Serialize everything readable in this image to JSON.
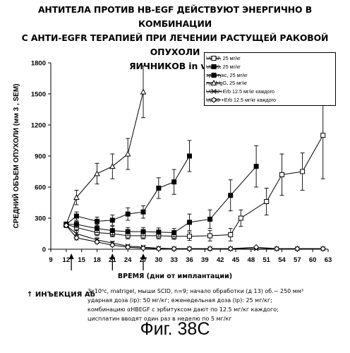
{
  "title_lines": [
    "АНТИТЕЛА ПРОТИВ HB-EGF ДЕЙСТВУЮТ ЭНЕРГИЧНО В КОМБИНАЦИИ",
    "С АНТИ-EGFR ТЕРАПИЕЙ ПРИ ЛЕЧЕНИИ РАСТУЩЕЙ РАКОВОЙ ОПУХОЛИ",
    "ЯИЧНИКОВ in vivo"
  ],
  "injection_note": "↑ ИНЪЕКЦИЯ Ab",
  "notes": [
    "3x10⁶c, matrigel, мыши SCID, n=9; начало обработки (д 13) об.~ 250  мм³",
    "ударная доза (ip): 50 мг/кг;    еженедельная доза (ip): 25 мг/кг;",
    "комбинацию     αHBEGF    с эрбитуксом дают по    12.5 мг/кг каждого;",
    "цисплатин вводят один раз в неделю по 5 мг/кг"
  ],
  "figure_label": "Фиг. 38C",
  "chart_data": {
    "type": "line",
    "title": "АНТИТЕЛА ПРОТИВ HB-EGF ДЕЙСТВУЮТ ЭНЕРГИЧНО В КОМБИНАЦИИ С АНТИ-EGFR ТЕРАПИЕЙ ПРИ ЛЕЧЕНИИ РАСТУЩЕЙ РАКОВОЙ ОПУХОЛИ ЯИЧНИКОВ in vivo",
    "xlabel": "ВРЕМЯ (дни от имплантации)",
    "ylabel": "СРЕДНИЙ ОБЪЕМ ОПУХОЛИ (мм 3 , SEM)",
    "xlim": [
      9,
      63
    ],
    "ylim": [
      0,
      1800
    ],
    "xticks": [
      9,
      12,
      15,
      18,
      21,
      24,
      27,
      30,
      33,
      36,
      39,
      42,
      45,
      48,
      51,
      54,
      57,
      60,
      63
    ],
    "xtick_labels": [
      "9",
      "12",
      "15",
      "18",
      "21",
      "24",
      "27",
      "30",
      "33",
      "36",
      "39",
      "42",
      "45",
      "48",
      "51",
      "54",
      "57",
      "60",
      "63"
    ],
    "yticks": [
      0,
      300,
      600,
      900,
      1200,
      1500,
      1800
    ],
    "ytick_labels": [
      "0",
      "300",
      "600",
      "900",
      "1200",
      "1500",
      "1800"
    ],
    "injection_days": [
      13,
      21,
      27
    ],
    "legend_position": "top-right",
    "series": [
      {
        "name": "U2-42, 25 мг/кг",
        "marker": "square-open",
        "x": [
          12,
          14,
          18,
          21,
          24,
          27,
          30,
          33,
          36,
          40,
          44,
          46,
          51,
          54,
          58,
          62
        ],
        "y": [
          240,
          210,
          160,
          150,
          130,
          130,
          130,
          125,
          125,
          130,
          140,
          300,
          460,
          720,
          750,
          1100
        ],
        "err": [
          20,
          30,
          30,
          30,
          30,
          30,
          30,
          30,
          40,
          50,
          60,
          80,
          130,
          200,
          180,
          420
        ]
      },
      {
        "name": "U2-39, 25 мг/кг",
        "marker": "square-filled",
        "x": [
          12,
          14,
          18,
          21,
          24,
          27,
          30,
          33,
          36,
          40,
          44,
          49
        ],
        "y": [
          240,
          240,
          200,
          180,
          170,
          170,
          165,
          160,
          260,
          290,
          520,
          800
        ],
        "err": [
          20,
          30,
          40,
          40,
          40,
          40,
          40,
          40,
          80,
          90,
          150,
          200
        ]
      },
      {
        "name": "эрбитукс, 25 мг/кг",
        "marker": "square-filled",
        "x": [
          12,
          14,
          18,
          21,
          24,
          27,
          30,
          33,
          36
        ],
        "y": [
          240,
          320,
          270,
          280,
          340,
          360,
          590,
          650,
          900
        ],
        "err": [
          20,
          40,
          40,
          50,
          60,
          60,
          100,
          120,
          150
        ]
      },
      {
        "name": "пул hIgG, 25 мг/кг",
        "marker": "triangle-open",
        "x": [
          12,
          14,
          18,
          21,
          24,
          27
        ],
        "y": [
          240,
          500,
          730,
          800,
          920,
          1520
        ],
        "err": [
          20,
          70,
          100,
          120,
          150,
          250
        ]
      },
      {
        "name": "U2-42+Erb 12.5 мг/кг каждого",
        "marker": "x",
        "x": [
          12,
          14,
          18,
          21,
          24,
          27,
          30,
          33,
          36,
          40,
          44,
          49,
          53,
          57,
          62
        ],
        "y": [
          230,
          150,
          90,
          60,
          30,
          20,
          10,
          5,
          5,
          5,
          5,
          5,
          5,
          5,
          5
        ],
        "err": [
          20,
          30,
          20,
          15,
          10,
          10,
          5,
          5,
          5,
          5,
          5,
          5,
          5,
          5,
          5
        ]
      },
      {
        "name": "U2-39 +Erb 12.5 мг/кг каждого",
        "marker": "diamond",
        "x": [
          12,
          14,
          18,
          21,
          24,
          27,
          30,
          33,
          36,
          40,
          44,
          49,
          53,
          57,
          62
        ],
        "y": [
          230,
          110,
          70,
          40,
          20,
          10,
          5,
          5,
          5,
          5,
          5,
          20,
          5,
          5,
          5
        ],
        "err": [
          20,
          20,
          15,
          10,
          5,
          5,
          5,
          5,
          5,
          5,
          5,
          5,
          5,
          5,
          5
        ]
      }
    ]
  }
}
